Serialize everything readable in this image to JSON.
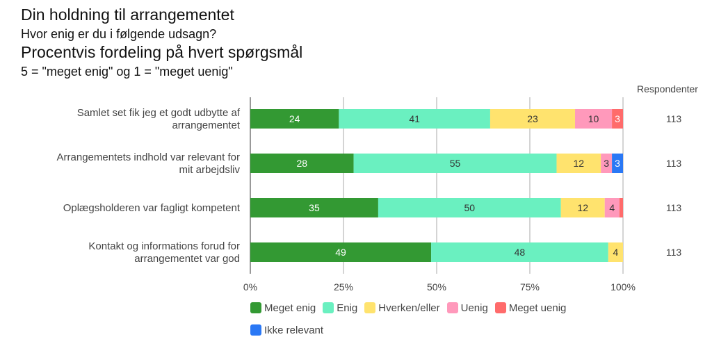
{
  "chart_data": {
    "type": "bar",
    "orientation": "horizontal",
    "stacked": true,
    "title": "Din holdning til arrangementet",
    "subtitles": [
      "Hvor enig er du i følgende udsagn?",
      "Procentvis fordeling på hvert spørgsmål",
      "5 = \"meget enig\" og 1 = \"meget uenig\""
    ],
    "categories": [
      "Samlet set fik jeg et godt udbytte af arrangementet",
      "Arrangementets indhold var relevant for mit arbejdsliv",
      "Oplægsholderen var fagligt kompetent",
      "Kontakt og informations forud for arrangementet var god"
    ],
    "category_lines": [
      [
        "Samlet set fik jeg et godt udbytte af",
        "arrangementet"
      ],
      [
        "Arrangementets indhold var relevant for",
        "mit arbejdsliv"
      ],
      [
        "Oplægsholderen var fagligt kompetent"
      ],
      [
        "Kontakt og informations forud for",
        "arrangementet var god"
      ]
    ],
    "series": [
      {
        "name": "Meget enig",
        "color": "#339933",
        "label_color": "#ffffff",
        "values": [
          24,
          28,
          35,
          49
        ]
      },
      {
        "name": "Enig",
        "color": "#6af0c0",
        "label_color": "#333333",
        "values": [
          41,
          55,
          50,
          48
        ]
      },
      {
        "name": "Hverken/eller",
        "color": "#ffe36e",
        "label_color": "#333333",
        "values": [
          23,
          12,
          12,
          4
        ]
      },
      {
        "name": "Uenig",
        "color": "#ff99bb",
        "label_color": "#333333",
        "values": [
          10,
          3,
          4,
          0
        ]
      },
      {
        "name": "Meget uenig",
        "color": "#ff6b6b",
        "label_color": "#ffffff",
        "values": [
          3,
          0,
          1,
          0
        ]
      },
      {
        "name": "Ikke relevant",
        "color": "#2a78f5",
        "label_color": "#ffffff",
        "values": [
          0,
          3,
          0,
          0
        ]
      }
    ],
    "hidden_labels": [
      [
        2,
        4
      ]
    ],
    "x_ticks": [
      "0%",
      "25%",
      "50%",
      "75%",
      "100%"
    ],
    "xlim": [
      0,
      100
    ],
    "xlabel": "",
    "ylabel": "",
    "grid": true,
    "legend_position": "bottom",
    "respondents_header": "Respondenter",
    "respondents": [
      113,
      113,
      113,
      113
    ]
  }
}
